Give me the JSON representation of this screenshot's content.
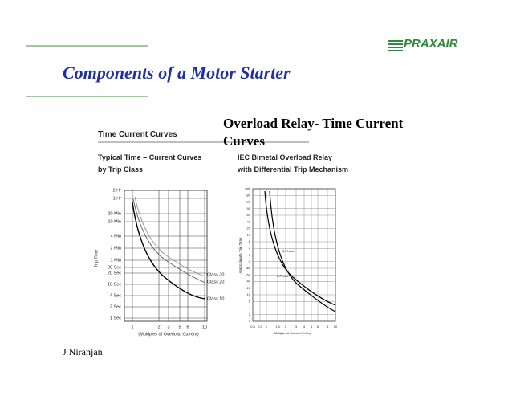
{
  "header": {
    "logo": "PRAXAIR",
    "title": "Components of a  Motor Starter",
    "subtitle": "Overload Relay- Time Current Curves"
  },
  "left_figure": {
    "heading": "Time Current Curves",
    "subheading": [
      "Typical Time – Current Curves",
      "by Trip Class"
    ],
    "y_labels": [
      "2 Hr",
      "1 Hr",
      "20 Min",
      "10 Min",
      "4 Min",
      "2 Min",
      "1 Min",
      "30 Sec",
      "20 Sec",
      "10 Sec",
      "4 Sec",
      "2 Sec",
      "1 Sec"
    ],
    "x_labels": [
      "1",
      "2",
      "3",
      "5",
      "6",
      "10"
    ],
    "y_axis_label": "Trip Time",
    "x_axis_label": "(Multiples of Overload Current)",
    "curve_labels": [
      "Class 30",
      "Class 20",
      "Class 10"
    ]
  },
  "right_figure": {
    "subheading": [
      "IEC Bimetal Overload Relay",
      "with Differential Trip Mechanism"
    ],
    "y_labels": [
      "min",
      "180",
      "120",
      "90",
      "60",
      "40",
      "20",
      "10",
      "6",
      "4",
      "2",
      "1",
      "sec",
      "60",
      "40",
      "20",
      "10",
      "6",
      "4",
      "2",
      "1"
    ],
    "x_labels": [
      "0.8",
      "0.9",
      "1",
      "1.5",
      "2",
      "3",
      "4",
      "5",
      "6",
      "8",
      "10"
    ],
    "y_axis_label": "Approximate Trip Time",
    "x_axis_label": "Multiple of Current Setting",
    "curve_labels": [
      "3-Phase",
      "2-Phase"
    ]
  },
  "footer": {
    "author": "J Niranjan"
  }
}
